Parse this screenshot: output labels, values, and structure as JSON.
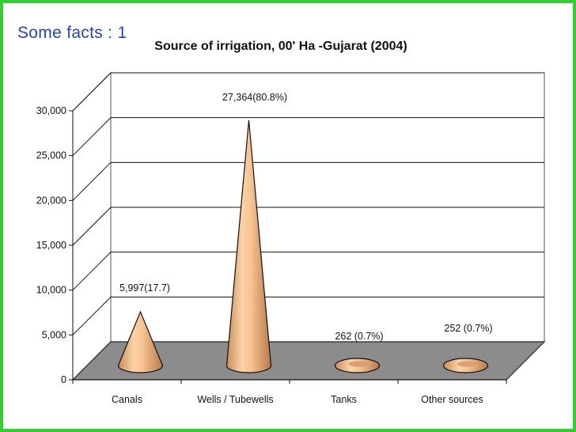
{
  "slide": {
    "heading": "Some facts : 1"
  },
  "colors": {
    "frame": "#33cc33",
    "heading": "#2343c4",
    "cone": "#f2c08e",
    "floor": "#8c8c8c"
  },
  "chart_data": {
    "type": "bar",
    "style": "3d-cone",
    "title": "Source of irrigation, 00' Ha -Gujarat (2004)",
    "categories": [
      "Canals",
      "Wells / Tubewells",
      "Tanks",
      "Other sources"
    ],
    "series": [
      {
        "values": [
          5997,
          27364,
          262,
          252
        ]
      }
    ],
    "data_labels": [
      "5,997(17.7)",
      "27,364(80.8%)",
      "262 (0.7%)",
      "252 (0.7%)"
    ],
    "ylim": [
      0,
      30000
    ],
    "yticks": [
      0,
      5000,
      10000,
      15000,
      20000,
      25000,
      30000
    ],
    "ytick_labels": [
      "0",
      "5,000",
      "10,000",
      "15,000",
      "20,000",
      "25,000",
      "30,000"
    ],
    "xlabel": "",
    "ylabel": "",
    "grid": true,
    "legend": "none"
  }
}
